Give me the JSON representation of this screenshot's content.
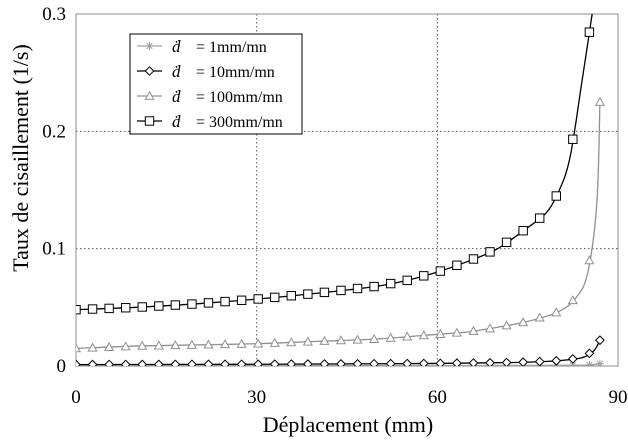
{
  "chart_data": {
    "type": "line",
    "title": "",
    "xlabel": "Déplacement (mm)",
    "ylabel": "Taux de cisaillement (1/s)",
    "xlim": [
      0,
      90
    ],
    "ylim": [
      0,
      0.3
    ],
    "x_ticks": [
      "0",
      "30",
      "60",
      "90"
    ],
    "y_ticks": [
      "0",
      "0.1",
      "0.2",
      "0.3"
    ],
    "grid": "dotted",
    "legend_position": "top-left",
    "series": [
      {
        "name": "= 1mm/mn",
        "legend_symbol": "ḋ",
        "marker": "asterisk",
        "color": "#a0a0a0",
        "x": [
          0,
          10,
          20,
          30,
          40,
          50,
          60,
          70,
          80,
          85,
          87
        ],
        "y": [
          0.0004,
          0.0004,
          0.0004,
          0.0004,
          0.0004,
          0.0004,
          0.0004,
          0.0005,
          0.0006,
          0.0008,
          0.002
        ]
      },
      {
        "name": "= 10mm/mn",
        "legend_symbol": "ḋ",
        "marker": "diamond",
        "color": "#000000",
        "x": [
          0,
          10,
          20,
          30,
          40,
          50,
          60,
          70,
          75,
          80,
          84,
          86,
          87
        ],
        "y": [
          0.0012,
          0.0013,
          0.0014,
          0.0015,
          0.0017,
          0.0019,
          0.0022,
          0.0028,
          0.0033,
          0.0045,
          0.007,
          0.013,
          0.022
        ]
      },
      {
        "name": "= 100mm/mn",
        "legend_symbol": "ḋ",
        "marker": "triangle",
        "color": "#909090",
        "x": [
          0,
          10,
          20,
          30,
          40,
          50,
          60,
          65,
          70,
          75,
          80,
          83,
          85,
          86.5,
          87
        ],
        "y": [
          0.015,
          0.017,
          0.018,
          0.019,
          0.021,
          0.023,
          0.027,
          0.029,
          0.033,
          0.038,
          0.046,
          0.058,
          0.08,
          0.14,
          0.225
        ]
      },
      {
        "name": "= 300mm/mn",
        "legend_symbol": "ḋ",
        "marker": "square",
        "color": "#000000",
        "x": [
          0,
          10,
          20,
          30,
          40,
          50,
          55,
          60,
          65,
          70,
          75,
          78,
          80,
          82,
          84,
          86
        ],
        "y": [
          0.048,
          0.05,
          0.053,
          0.057,
          0.062,
          0.068,
          0.073,
          0.08,
          0.089,
          0.1,
          0.118,
          0.13,
          0.147,
          0.177,
          0.242,
          0.31
        ]
      }
    ]
  }
}
